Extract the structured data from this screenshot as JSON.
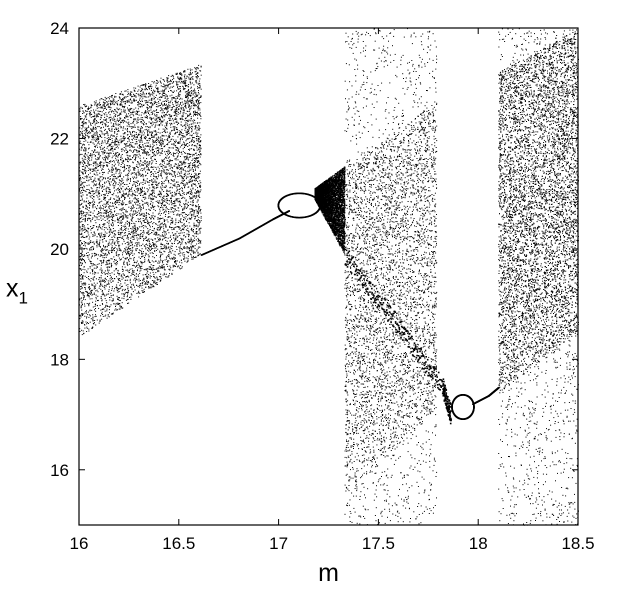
{
  "chart_data": {
    "type": "scatter",
    "title": "",
    "xlabel": "m",
    "ylabel": "x",
    "ylabel_subscript": "1",
    "xlim": [
      16,
      18.5
    ],
    "ylim": [
      15,
      24
    ],
    "xticks": [
      16,
      16.5,
      17,
      17.5,
      18,
      18.5
    ],
    "xtick_labels": [
      "16",
      "16.5",
      "17",
      "17.5",
      "18",
      "18.5"
    ],
    "yticks": [
      16,
      18,
      20,
      22,
      24
    ],
    "ytick_labels": [
      "16",
      "18",
      "20",
      "22",
      "24"
    ],
    "grid": false,
    "legend": "none",
    "marker_color": "#000000",
    "regions": [
      {
        "kind": "chaotic-band",
        "x_range": [
          16.0,
          16.61
        ],
        "lower": [
          [
            16.0,
            18.4
          ],
          [
            16.61,
            19.9
          ]
        ],
        "upper": [
          [
            16.0,
            22.6
          ],
          [
            16.61,
            23.35
          ]
        ],
        "density": "high"
      },
      {
        "kind": "periodic-branch",
        "points": [
          [
            16.61,
            19.9
          ],
          [
            16.8,
            20.2
          ],
          [
            16.97,
            20.55
          ],
          [
            17.05,
            20.7
          ]
        ]
      },
      {
        "kind": "period-doubling-bubble",
        "center": [
          17.1,
          20.8
        ],
        "x_range": [
          16.99,
          17.2
        ]
      },
      {
        "kind": "chaotic-band",
        "x_range": [
          17.18,
          17.33
        ],
        "lower": [
          [
            17.18,
            20.9
          ],
          [
            17.33,
            19.9
          ]
        ],
        "upper": [
          [
            17.18,
            21.1
          ],
          [
            17.33,
            21.5
          ]
        ],
        "density": "high"
      },
      {
        "kind": "chaotic-band",
        "x_range": [
          17.33,
          17.79
        ],
        "lower": [
          [
            17.33,
            15.5
          ],
          [
            17.79,
            17.1
          ]
        ],
        "upper": [
          [
            17.33,
            21.5
          ],
          [
            17.79,
            22.7
          ]
        ],
        "density": "medium"
      },
      {
        "kind": "sparse-band",
        "x_range": [
          17.33,
          17.79
        ],
        "lower": [
          [
            17.33,
            15.0
          ],
          [
            17.79,
            15.0
          ]
        ],
        "upper": [
          [
            17.33,
            24.0
          ],
          [
            17.79,
            24.0
          ]
        ],
        "density": "low"
      },
      {
        "kind": "dense-ribbon",
        "points": [
          [
            17.33,
            19.9
          ],
          [
            17.6,
            18.6
          ],
          [
            17.82,
            17.5
          ],
          [
            17.86,
            17.0
          ]
        ]
      },
      {
        "kind": "period-doubling-bubble",
        "center": [
          17.92,
          17.15
        ],
        "x_range": [
          17.86,
          17.97
        ]
      },
      {
        "kind": "periodic-branch",
        "points": [
          [
            17.97,
            17.2
          ],
          [
            18.05,
            17.35
          ],
          [
            18.1,
            17.5
          ]
        ]
      },
      {
        "kind": "chaotic-band",
        "x_range": [
          18.1,
          18.5
        ],
        "lower": [
          [
            18.1,
            17.4
          ],
          [
            18.5,
            18.45
          ]
        ],
        "upper": [
          [
            18.1,
            23.2
          ],
          [
            18.5,
            24.0
          ]
        ],
        "density": "high"
      },
      {
        "kind": "sparse-band",
        "x_range": [
          18.1,
          18.5
        ],
        "lower": [
          [
            18.1,
            15.0
          ],
          [
            18.5,
            15.0
          ]
        ],
        "upper": [
          [
            18.1,
            24.0
          ],
          [
            18.5,
            24.0
          ]
        ],
        "density": "low"
      }
    ]
  }
}
